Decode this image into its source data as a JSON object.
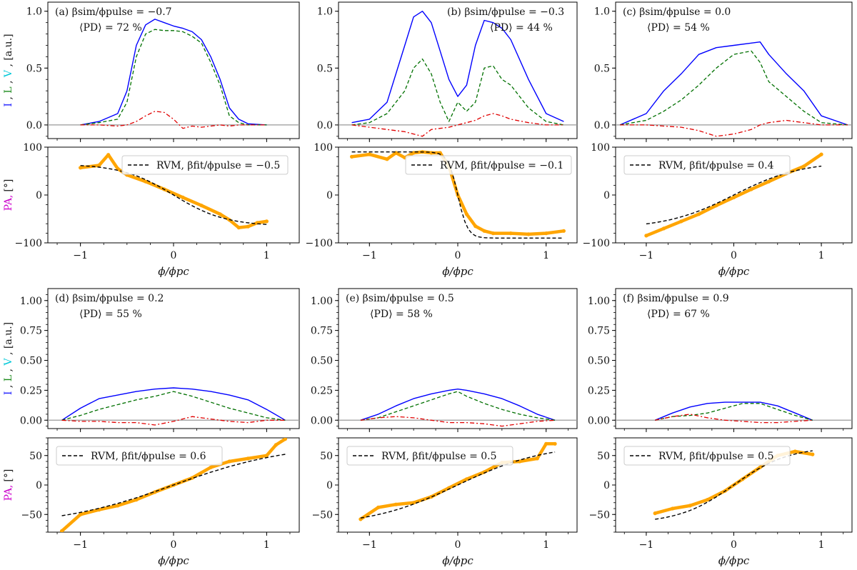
{
  "figure": {
    "ylabel_profile": {
      "I": "I",
      "L": "L",
      "V": "V",
      "sep": ",",
      "unit": "[a.u.]"
    },
    "ylabel_pa": {
      "pa": "PA,",
      "unit": "[°]"
    },
    "xlabel": "ϕ/ϕpc",
    "colors": {
      "I": "#0000ff",
      "L": "#007000",
      "V": "#e00000",
      "PA": "#ffa500",
      "RVM": "#000000",
      "I_label": "#1a1aff",
      "L_label": "#1a8a1a",
      "V_label": "#00c8d8",
      "PA_label": "#cc00cc",
      "zero_line": "#999999"
    }
  },
  "chart_data": [
    {
      "panel": "a",
      "type": "line",
      "label": "(a) βsim/ϕpulse = −0.7",
      "pd_label": "⟨PD⟩ = 72 %",
      "legend": "RVM, βfit/ϕpulse = −0.5",
      "xlim": [
        -1.35,
        1.35
      ],
      "xticks": [
        -1,
        0,
        1
      ],
      "xtick_labels": [
        "−1",
        "0",
        "1"
      ],
      "profile": {
        "ylim": [
          -0.12,
          1.08
        ],
        "yticks": [
          0.0,
          0.5,
          1.0
        ],
        "ytick_labels": [
          "0.0",
          "0.5",
          "1.0"
        ],
        "x": [
          -1.0,
          -0.8,
          -0.6,
          -0.5,
          -0.4,
          -0.3,
          -0.2,
          -0.1,
          0.0,
          0.1,
          0.2,
          0.3,
          0.4,
          0.5,
          0.6,
          0.7,
          0.8,
          1.0
        ],
        "I": [
          0.0,
          0.03,
          0.1,
          0.3,
          0.7,
          0.88,
          0.93,
          0.9,
          0.87,
          0.85,
          0.82,
          0.75,
          0.6,
          0.4,
          0.15,
          0.05,
          0.01,
          0.0
        ],
        "L": [
          0.0,
          0.02,
          0.05,
          0.2,
          0.6,
          0.8,
          0.84,
          0.83,
          0.83,
          0.82,
          0.78,
          0.72,
          0.55,
          0.35,
          0.08,
          0.02,
          0.0,
          0.0
        ],
        "V": [
          0.0,
          0.0,
          -0.01,
          0.0,
          0.03,
          0.08,
          0.12,
          0.11,
          0.05,
          -0.03,
          -0.01,
          -0.02,
          -0.01,
          0.0,
          -0.01,
          0.0,
          0.0,
          0.0
        ]
      },
      "pa": {
        "ylim": [
          -100,
          100
        ],
        "yticks": [
          -100,
          0,
          100
        ],
        "ytick_labels": [
          "−100",
          "0",
          "100"
        ],
        "x": [
          -1.0,
          -0.8,
          -0.7,
          -0.6,
          -0.5,
          -0.3,
          -0.1,
          0.1,
          0.3,
          0.5,
          0.6,
          0.7,
          0.8,
          0.9,
          1.0
        ],
        "values": [
          57,
          62,
          84,
          55,
          42,
          28,
          12,
          -5,
          -22,
          -40,
          -52,
          -68,
          -66,
          -58,
          -55
        ],
        "rvm": {
          "beta": -0.5,
          "a": 65,
          "k": 1.8
        }
      }
    },
    {
      "panel": "b",
      "type": "line",
      "label": "(b) βsim/ϕpulse = −0.3",
      "pd_label": "⟨PD⟩ = 44 %",
      "legend": "RVM, βfit/ϕpulse = −0.1",
      "xlim": [
        -1.35,
        1.35
      ],
      "xticks": [
        -1,
        0,
        1
      ],
      "xtick_labels": [
        "−1",
        "0",
        "1"
      ],
      "profile": {
        "ylim": [
          -0.12,
          1.08
        ],
        "yticks": [
          0.0,
          0.5,
          1.0
        ],
        "ytick_labels": [
          "0.0",
          "0.5",
          "1.0"
        ],
        "x": [
          -1.2,
          -1.0,
          -0.8,
          -0.6,
          -0.5,
          -0.4,
          -0.3,
          -0.2,
          -0.1,
          0.0,
          0.1,
          0.2,
          0.3,
          0.4,
          0.5,
          0.6,
          0.8,
          1.0,
          1.2
        ],
        "I": [
          0.02,
          0.05,
          0.2,
          0.7,
          0.95,
          1.0,
          0.9,
          0.65,
          0.4,
          0.25,
          0.35,
          0.7,
          0.92,
          0.9,
          0.85,
          0.75,
          0.4,
          0.1,
          0.03
        ],
        "L": [
          0.0,
          0.02,
          0.1,
          0.3,
          0.5,
          0.58,
          0.45,
          0.2,
          0.03,
          0.2,
          0.12,
          0.2,
          0.5,
          0.52,
          0.4,
          0.35,
          0.15,
          0.03,
          0.0
        ],
        "V": [
          0.0,
          -0.02,
          -0.04,
          -0.06,
          -0.08,
          -0.1,
          -0.04,
          -0.03,
          -0.02,
          0.0,
          0.02,
          0.04,
          0.08,
          0.1,
          0.08,
          0.05,
          0.02,
          0.0,
          0.0
        ]
      },
      "pa": {
        "ylim": [
          -100,
          100
        ],
        "yticks": [
          -100,
          0,
          100
        ],
        "ytick_labels": [
          "−100",
          "0",
          "100"
        ],
        "x": [
          -1.2,
          -1.0,
          -0.8,
          -0.7,
          -0.6,
          -0.5,
          -0.4,
          -0.3,
          -0.2,
          -0.1,
          0.0,
          0.1,
          0.2,
          0.3,
          0.4,
          0.6,
          0.8,
          1.0,
          1.2
        ],
        "values": [
          80,
          85,
          75,
          88,
          78,
          88,
          90,
          88,
          88,
          60,
          0,
          -40,
          -65,
          -75,
          -80,
          -80,
          -82,
          -80,
          -75
        ],
        "rvm": {
          "beta": -0.1,
          "a": 90,
          "k": 9
        }
      }
    },
    {
      "panel": "c",
      "type": "line",
      "label": "(c) βsim/ϕpulse = 0.0",
      "pd_label": "⟨PD⟩ = 54 %",
      "legend": "RVM, βfit/ϕpulse = 0.4",
      "xlim": [
        -1.35,
        1.35
      ],
      "xticks": [
        -1,
        0,
        1
      ],
      "xtick_labels": [
        "−1",
        "0",
        "1"
      ],
      "profile": {
        "ylim": [
          -0.12,
          1.08
        ],
        "yticks": [
          0.0,
          0.5,
          1.0
        ],
        "ytick_labels": [
          "0.0",
          "0.5",
          "1.0"
        ],
        "x": [
          -1.3,
          -1.0,
          -0.8,
          -0.6,
          -0.4,
          -0.2,
          0.0,
          0.2,
          0.3,
          0.4,
          0.6,
          0.8,
          1.0,
          1.3
        ],
        "I": [
          0.0,
          0.1,
          0.3,
          0.45,
          0.62,
          0.68,
          0.7,
          0.72,
          0.73,
          0.62,
          0.45,
          0.3,
          0.08,
          0.0
        ],
        "L": [
          0.0,
          0.04,
          0.12,
          0.22,
          0.35,
          0.5,
          0.62,
          0.65,
          0.55,
          0.38,
          0.25,
          0.12,
          0.02,
          0.0
        ],
        "V": [
          0.0,
          0.0,
          -0.01,
          -0.02,
          -0.05,
          -0.1,
          -0.08,
          -0.04,
          0.0,
          0.02,
          0.04,
          0.02,
          0.0,
          0.0
        ]
      },
      "pa": {
        "ylim": [
          -100,
          100
        ],
        "yticks": [
          -100,
          0,
          100
        ],
        "ytick_labels": [
          "−100",
          "0",
          "100"
        ],
        "x": [
          -1.0,
          -0.8,
          -0.6,
          -0.4,
          -0.2,
          0.0,
          0.2,
          0.4,
          0.6,
          0.8,
          1.0
        ],
        "values": [
          -85,
          -70,
          -55,
          -40,
          -22,
          -5,
          12,
          28,
          45,
          60,
          85
        ],
        "rvm": {
          "beta": 0.4,
          "a": 70,
          "k": 1.3
        }
      }
    },
    {
      "panel": "d",
      "type": "line",
      "label": "(d) βsim/ϕpulse = 0.2",
      "pd_label": "⟨PD⟩ = 55 %",
      "legend": "RVM, βfit/ϕpulse = 0.6",
      "xlim": [
        -1.35,
        1.35
      ],
      "xticks": [
        -1,
        0,
        1
      ],
      "xtick_labels": [
        "−1",
        "0",
        "1"
      ],
      "profile": {
        "ylim": [
          -0.07,
          1.1
        ],
        "yticks": [
          0.0,
          0.25,
          0.5,
          0.75,
          1.0
        ],
        "ytick_labels": [
          "0.00",
          "0.25",
          "0.50",
          "0.75",
          "1.00"
        ],
        "x": [
          -1.2,
          -1.0,
          -0.8,
          -0.6,
          -0.4,
          -0.2,
          0.0,
          0.2,
          0.4,
          0.6,
          0.8,
          1.0,
          1.2
        ],
        "I": [
          0.0,
          0.1,
          0.18,
          0.21,
          0.24,
          0.26,
          0.27,
          0.26,
          0.24,
          0.21,
          0.17,
          0.09,
          0.0
        ],
        "L": [
          0.0,
          0.04,
          0.09,
          0.13,
          0.17,
          0.2,
          0.24,
          0.2,
          0.15,
          0.1,
          0.06,
          0.02,
          0.0
        ],
        "V": [
          0.0,
          -0.01,
          -0.01,
          -0.02,
          -0.02,
          -0.04,
          -0.01,
          0.03,
          0.01,
          -0.01,
          -0.02,
          0.0,
          0.0
        ]
      },
      "pa": {
        "ylim": [
          -80,
          80
        ],
        "yticks": [
          -50,
          0,
          50
        ],
        "ytick_labels": [
          "−50",
          "0",
          "50"
        ],
        "x": [
          -1.2,
          -1.0,
          -0.8,
          -0.6,
          -0.4,
          -0.2,
          0.0,
          0.2,
          0.4,
          0.6,
          0.8,
          1.0,
          1.1,
          1.2
        ],
        "values": [
          -78,
          -50,
          -42,
          -35,
          -25,
          -12,
          0,
          12,
          30,
          40,
          45,
          50,
          68,
          78
        ],
        "rvm": {
          "beta": 0.6,
          "a": 70,
          "k": 0.8
        }
      }
    },
    {
      "panel": "e",
      "type": "line",
      "label": "(e) βsim/ϕpulse = 0.5",
      "pd_label": "⟨PD⟩ = 58 %",
      "legend": "RVM, βfit/ϕpulse = 0.5",
      "xlim": [
        -1.35,
        1.35
      ],
      "xticks": [
        -1,
        0,
        1
      ],
      "xtick_labels": [
        "−1",
        "0",
        "1"
      ],
      "profile": {
        "ylim": [
          -0.07,
          1.1
        ],
        "yticks": [
          0.0,
          0.25,
          0.5,
          0.75,
          1.0
        ],
        "ytick_labels": [
          "0.00",
          "0.25",
          "0.50",
          "0.75",
          "1.00"
        ],
        "x": [
          -1.1,
          -0.9,
          -0.7,
          -0.5,
          -0.3,
          -0.1,
          0.0,
          0.1,
          0.3,
          0.5,
          0.7,
          0.9,
          1.1
        ],
        "I": [
          0.0,
          0.05,
          0.12,
          0.18,
          0.22,
          0.25,
          0.26,
          0.25,
          0.22,
          0.18,
          0.12,
          0.05,
          0.0
        ],
        "L": [
          0.0,
          0.02,
          0.07,
          0.12,
          0.17,
          0.22,
          0.24,
          0.2,
          0.14,
          0.09,
          0.05,
          0.02,
          0.0
        ],
        "V": [
          0.0,
          0.02,
          0.03,
          0.02,
          0.0,
          -0.02,
          -0.02,
          -0.02,
          -0.03,
          -0.05,
          -0.03,
          -0.01,
          0.0
        ]
      },
      "pa": {
        "ylim": [
          -80,
          80
        ],
        "yticks": [
          -50,
          0,
          50
        ],
        "ytick_labels": [
          "−50",
          "0",
          "50"
        ],
        "x": [
          -1.1,
          -0.9,
          -0.7,
          -0.5,
          -0.3,
          -0.1,
          0.1,
          0.3,
          0.5,
          0.7,
          0.9,
          1.0,
          1.1
        ],
        "values": [
          -58,
          -38,
          -33,
          -30,
          -20,
          -5,
          10,
          22,
          38,
          40,
          45,
          70,
          70
        ],
        "rvm": {
          "beta": 0.5,
          "a": 70,
          "k": 1.0
        }
      }
    },
    {
      "panel": "f",
      "type": "line",
      "label": "(f) βsim/ϕpulse = 0.9",
      "pd_label": "⟨PD⟩ = 67 %",
      "legend": "RVM, βfit/ϕpulse = 0.5",
      "xlim": [
        -1.35,
        1.35
      ],
      "xticks": [
        -1,
        0,
        1
      ],
      "xtick_labels": [
        "−1",
        "0",
        "1"
      ],
      "profile": {
        "ylim": [
          -0.07,
          1.1
        ],
        "yticks": [
          0.0,
          0.25,
          0.5,
          0.75,
          1.0
        ],
        "ytick_labels": [
          "0.00",
          "0.25",
          "0.50",
          "0.75",
          "1.00"
        ],
        "x": [
          -0.9,
          -0.7,
          -0.5,
          -0.3,
          -0.1,
          0.1,
          0.3,
          0.5,
          0.7,
          0.9
        ],
        "I": [
          0.0,
          0.06,
          0.11,
          0.14,
          0.15,
          0.15,
          0.15,
          0.12,
          0.06,
          0.0
        ],
        "L": [
          0.0,
          0.03,
          0.04,
          0.06,
          0.1,
          0.14,
          0.14,
          0.09,
          0.04,
          0.0
        ],
        "V": [
          0.0,
          0.03,
          0.05,
          0.02,
          0.0,
          -0.01,
          -0.02,
          -0.02,
          -0.01,
          0.0
        ]
      },
      "pa": {
        "ylim": [
          -80,
          80
        ],
        "yticks": [
          -50,
          0,
          50
        ],
        "ytick_labels": [
          "−50",
          "0",
          "50"
        ],
        "x": [
          -0.9,
          -0.7,
          -0.5,
          -0.3,
          -0.1,
          0.1,
          0.3,
          0.5,
          0.7,
          0.9
        ],
        "values": [
          -48,
          -40,
          -35,
          -25,
          -10,
          10,
          30,
          50,
          57,
          52
        ],
        "rvm": {
          "beta": 0.5,
          "a": 65,
          "k": 1.6
        }
      }
    }
  ]
}
